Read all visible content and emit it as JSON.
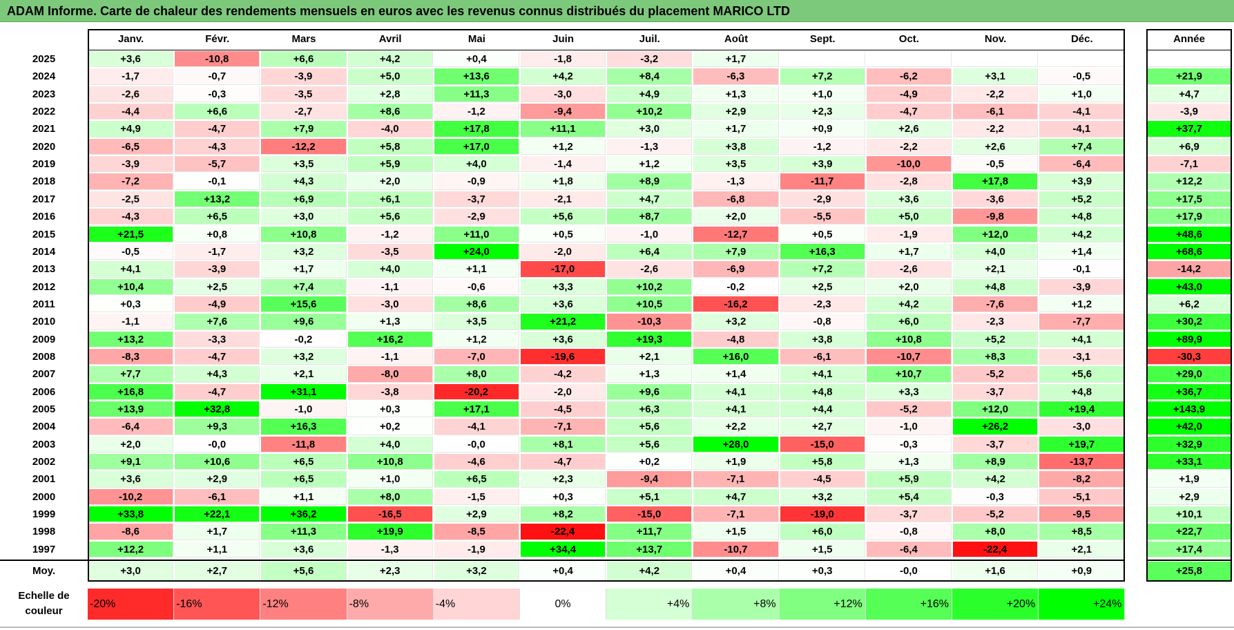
{
  "title": "ADAM Informe. Carte de chaleur des rendements mensuels en euros avec les revenus connus distribués du placement MARICO LTD",
  "chart_data": {
    "type": "heatmap",
    "columns": [
      "Janv.",
      "Févr.",
      "Mars",
      "Avril",
      "Mai",
      "Juin",
      "Juil.",
      "Août",
      "Sept.",
      "Oct.",
      "Nov.",
      "Déc."
    ],
    "year_column_label": "Année",
    "rows": [
      {
        "year": "2025",
        "values": [
          "+3,6",
          "-10,8",
          "+6,6",
          "+4,2",
          "+0,4",
          "-1,8",
          "-3,2",
          "+1,7",
          "",
          "",
          "",
          ""
        ],
        "annual": ""
      },
      {
        "year": "2024",
        "values": [
          "-1,7",
          "-0,7",
          "-3,9",
          "+5,0",
          "+13,6",
          "+4,2",
          "+8,4",
          "-6,3",
          "+7,2",
          "-6,2",
          "+3,1",
          "-0,5"
        ],
        "annual": "+21,9"
      },
      {
        "year": "2023",
        "values": [
          "-2,6",
          "-0,3",
          "-3,5",
          "+2,8",
          "+11,3",
          "-3,0",
          "+4,9",
          "+1,3",
          "+1,0",
          "-4,9",
          "-2,2",
          "+1,0"
        ],
        "annual": "+4,7"
      },
      {
        "year": "2022",
        "values": [
          "-4,4",
          "+6,6",
          "-2,7",
          "+8,6",
          "-1,2",
          "-9,4",
          "+10,2",
          "+2,9",
          "+2,3",
          "-4,7",
          "-6,1",
          "-4,1"
        ],
        "annual": "-3,9"
      },
      {
        "year": "2021",
        "values": [
          "+4,9",
          "-4,7",
          "+7,9",
          "-4,0",
          "+17,8",
          "+11,1",
          "+3,0",
          "+1,7",
          "+0,9",
          "+2,6",
          "-2,2",
          "-4,1"
        ],
        "annual": "+37,7"
      },
      {
        "year": "2020",
        "values": [
          "-6,5",
          "-4,3",
          "-12,2",
          "+5,8",
          "+17,0",
          "+1,2",
          "-1,3",
          "+3,8",
          "-1,2",
          "-2,2",
          "+2,6",
          "+7,4"
        ],
        "annual": "+6,9"
      },
      {
        "year": "2019",
        "values": [
          "-3,9",
          "-5,7",
          "+3,5",
          "+5,9",
          "+4,0",
          "-1,4",
          "+1,2",
          "+3,5",
          "+3,9",
          "-10,0",
          "-0,5",
          "-6,4"
        ],
        "annual": "-7,1"
      },
      {
        "year": "2018",
        "values": [
          "-7,2",
          "-0,1",
          "+4,3",
          "+2,0",
          "-0,9",
          "+1,8",
          "+8,9",
          "-1,3",
          "-11,7",
          "-2,8",
          "+17,8",
          "+3,9"
        ],
        "annual": "+12,2"
      },
      {
        "year": "2017",
        "values": [
          "-2,5",
          "+13,2",
          "+6,9",
          "+6,1",
          "-3,7",
          "-2,1",
          "+4,7",
          "-6,8",
          "-2,9",
          "+3,6",
          "-3,6",
          "+5,2"
        ],
        "annual": "+17,5"
      },
      {
        "year": "2016",
        "values": [
          "-4,3",
          "+6,5",
          "+3,0",
          "+5,6",
          "-2,9",
          "+5,6",
          "+8,7",
          "+2,0",
          "-5,5",
          "+5,0",
          "-9,8",
          "+4,8"
        ],
        "annual": "+17,9"
      },
      {
        "year": "2015",
        "values": [
          "+21,5",
          "+0,8",
          "+10,8",
          "-1,2",
          "+11,0",
          "+0,5",
          "-1,0",
          "-12,7",
          "+0,5",
          "-1,9",
          "+12,0",
          "+4,2"
        ],
        "annual": "+48,6"
      },
      {
        "year": "2014",
        "values": [
          "-0,5",
          "-1,7",
          "+3,2",
          "-3,5",
          "+24,0",
          "-2,0",
          "+6,4",
          "+7,9",
          "+16,3",
          "+1,7",
          "+4,0",
          "+1,4"
        ],
        "annual": "+68,6"
      },
      {
        "year": "2013",
        "values": [
          "+4,1",
          "-3,9",
          "+1,7",
          "+4,0",
          "+1,1",
          "-17,0",
          "-2,6",
          "-6,9",
          "+7,2",
          "-2,6",
          "+2,1",
          "-0,1"
        ],
        "annual": "-14,2"
      },
      {
        "year": "2012",
        "values": [
          "+10,4",
          "+2,5",
          "+7,4",
          "-1,1",
          "-0,6",
          "+3,3",
          "+10,2",
          "-0,2",
          "+2,5",
          "+2,0",
          "+4,8",
          "-3,9"
        ],
        "annual": "+43,0"
      },
      {
        "year": "2011",
        "values": [
          "+0,3",
          "-4,9",
          "+15,6",
          "-3,0",
          "+8,6",
          "+3,6",
          "+10,5",
          "-16,2",
          "-2,3",
          "+4,2",
          "-7,6",
          "+1,2"
        ],
        "annual": "+6,2"
      },
      {
        "year": "2010",
        "values": [
          "-1,1",
          "+7,6",
          "+9,6",
          "+1,3",
          "+3,5",
          "+21,2",
          "-10,3",
          "+3,2",
          "-0,8",
          "+6,0",
          "-2,3",
          "-7,7"
        ],
        "annual": "+30,2"
      },
      {
        "year": "2009",
        "values": [
          "+13,2",
          "-3,3",
          "-0,2",
          "+16,2",
          "+1,2",
          "+3,6",
          "+19,3",
          "-4,8",
          "+3,8",
          "+10,8",
          "+5,2",
          "+4,1"
        ],
        "annual": "+89,9"
      },
      {
        "year": "2008",
        "values": [
          "-8,3",
          "-4,7",
          "+3,2",
          "-1,1",
          "-7,0",
          "-19,6",
          "+2,1",
          "+16,0",
          "-6,1",
          "-10,7",
          "+8,3",
          "-3,1"
        ],
        "annual": "-30,3"
      },
      {
        "year": "2007",
        "values": [
          "+7,7",
          "+4,3",
          "+2,1",
          "-8,0",
          "+8,0",
          "-4,2",
          "+1,3",
          "+1,4",
          "+4,1",
          "+10,7",
          "-5,2",
          "+5,6"
        ],
        "annual": "+29,0"
      },
      {
        "year": "2006",
        "values": [
          "+16,8",
          "-4,7",
          "+31,1",
          "-3,8",
          "-20,2",
          "-2,0",
          "+9,6",
          "+4,1",
          "+4,8",
          "+3,3",
          "-3,7",
          "+4,8"
        ],
        "annual": "+36,7"
      },
      {
        "year": "2005",
        "values": [
          "+13,9",
          "+32,8",
          "-1,0",
          "+0,3",
          "+17,1",
          "-4,5",
          "+6,3",
          "+4,1",
          "+4,4",
          "-5,2",
          "+12,0",
          "+19,4"
        ],
        "annual": "+143,9"
      },
      {
        "year": "2004",
        "values": [
          "-6,4",
          "+9,3",
          "+16,3",
          "+0,2",
          "-4,1",
          "-7,1",
          "+5,6",
          "+2,2",
          "+2,7",
          "-1,0",
          "+26,2",
          "-3,0"
        ],
        "annual": "+42,0"
      },
      {
        "year": "2003",
        "values": [
          "+2,0",
          "-0,0",
          "-11,8",
          "+4,0",
          "-0,0",
          "+8,1",
          "+5,6",
          "+28,0",
          "-15,0",
          "-0,3",
          "-3,7",
          "+19,7"
        ],
        "annual": "+32,9"
      },
      {
        "year": "2002",
        "values": [
          "+9,1",
          "+10,6",
          "+6,5",
          "+10,8",
          "-4,6",
          "-4,7",
          "+0,2",
          "+1,9",
          "+5,8",
          "+1,3",
          "+8,9",
          "-13,7"
        ],
        "annual": "+33,1"
      },
      {
        "year": "2001",
        "values": [
          "+3,6",
          "+2,9",
          "+6,5",
          "+1,0",
          "+6,5",
          "+2,3",
          "-9,4",
          "-7,1",
          "-4,5",
          "+5,9",
          "+4,2",
          "-8,2"
        ],
        "annual": "+1,9"
      },
      {
        "year": "2000",
        "values": [
          "-10,2",
          "-6,1",
          "+1,1",
          "+8,0",
          "-1,5",
          "+0,3",
          "+5,1",
          "+4,7",
          "+3,2",
          "+5,4",
          "-0,3",
          "-5,1"
        ],
        "annual": "+2,9"
      },
      {
        "year": "1999",
        "values": [
          "+33,8",
          "+22,1",
          "+36,2",
          "-16,5",
          "+2,9",
          "+8,2",
          "-15,0",
          "-7,1",
          "-19,0",
          "-3,7",
          "-5,2",
          "-9,5"
        ],
        "annual": "+10,1"
      },
      {
        "year": "1998",
        "values": [
          "-8,6",
          "+1,7",
          "+11,3",
          "+19,9",
          "-8,5",
          "-22,4",
          "+11,7",
          "+1,5",
          "+6,0",
          "-0,8",
          "+8,0",
          "+8,5"
        ],
        "annual": "+22,7"
      },
      {
        "year": "1997",
        "values": [
          "+12,2",
          "+1,1",
          "+3,6",
          "-1,3",
          "-1,9",
          "+34,4",
          "+13,7",
          "-10,7",
          "+1,5",
          "-6,4",
          "-22,4",
          "+2,1"
        ],
        "annual": "+17,4"
      }
    ],
    "average_row": {
      "label": "Moy.",
      "values": [
        "+3,0",
        "+2,7",
        "+5,6",
        "+2,3",
        "+3,2",
        "+0,4",
        "+4,2",
        "+0,4",
        "+0,3",
        "-0,0",
        "+1,6",
        "+0,9"
      ],
      "annual": "+25,8"
    },
    "scale": {
      "label_line1": "Echelle de",
      "label_line2": "couleur",
      "stops": [
        "-20%",
        "-16%",
        "-12%",
        "-8%",
        "-4%",
        "0%",
        "+4%",
        "+8%",
        "+12%",
        "+16%",
        "+20%",
        "+24%"
      ]
    },
    "colors": {
      "negative_max": "#ff0000",
      "zero": "#ffffff",
      "positive_max": "#00ff00",
      "title_bg": "#7dc97b"
    }
  }
}
